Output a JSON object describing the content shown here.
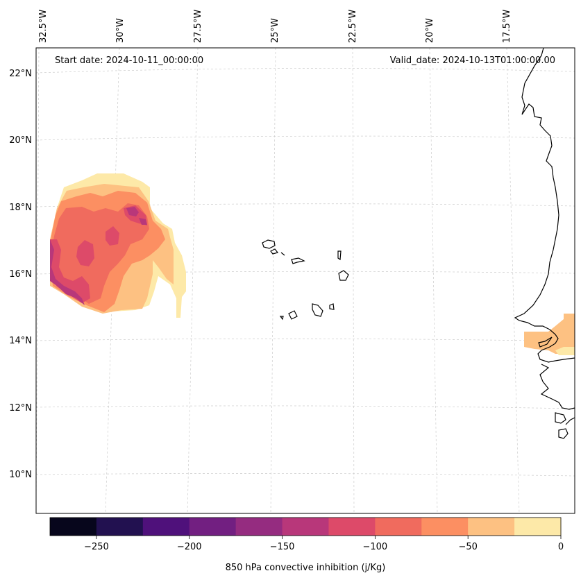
{
  "header": {
    "start_date": "Start date: 2024-10-11_00:00:00",
    "valid_date": "Valid_date: 2024-10-13T01:00:00.00"
  },
  "longitude_labels": [
    "32.5°W",
    "30°W",
    "27.5°W",
    "25°W",
    "22.5°W",
    "20°W",
    "17.5°W"
  ],
  "latitude_labels": [
    "22°N",
    "20°N",
    "18°N",
    "16°N",
    "14°N",
    "12°N",
    "10°N"
  ],
  "colorbar": {
    "title": "850 hPa convective inhibition (j/Kg)",
    "tick_labels": [
      "−250",
      "−200",
      "−150",
      "−100",
      "−50",
      "0"
    ],
    "levels": [
      -275,
      -250,
      -225,
      -200,
      -175,
      -150,
      -125,
      -100,
      -75,
      -50,
      -25,
      0
    ],
    "colors": [
      "#07061c",
      "#221150",
      "#4f117b",
      "#721f81",
      "#952c80",
      "#b8377a",
      "#dd4a69",
      "#f06b5e",
      "#fc8f62",
      "#fdc182",
      "#fde9a8"
    ]
  },
  "colors": {
    "coastline": "#000000",
    "gridline": "#cccccc",
    "cin_0_to_m25": "#fde9a8",
    "cin_m25_to_m50": "#fdc182",
    "cin_m50_to_m75": "#fc8f62",
    "cin_m75_to_m100": "#f06b5e",
    "cin_m100_to_m125": "#dd4a69",
    "cin_m125_to_m150": "#b8377a"
  }
}
